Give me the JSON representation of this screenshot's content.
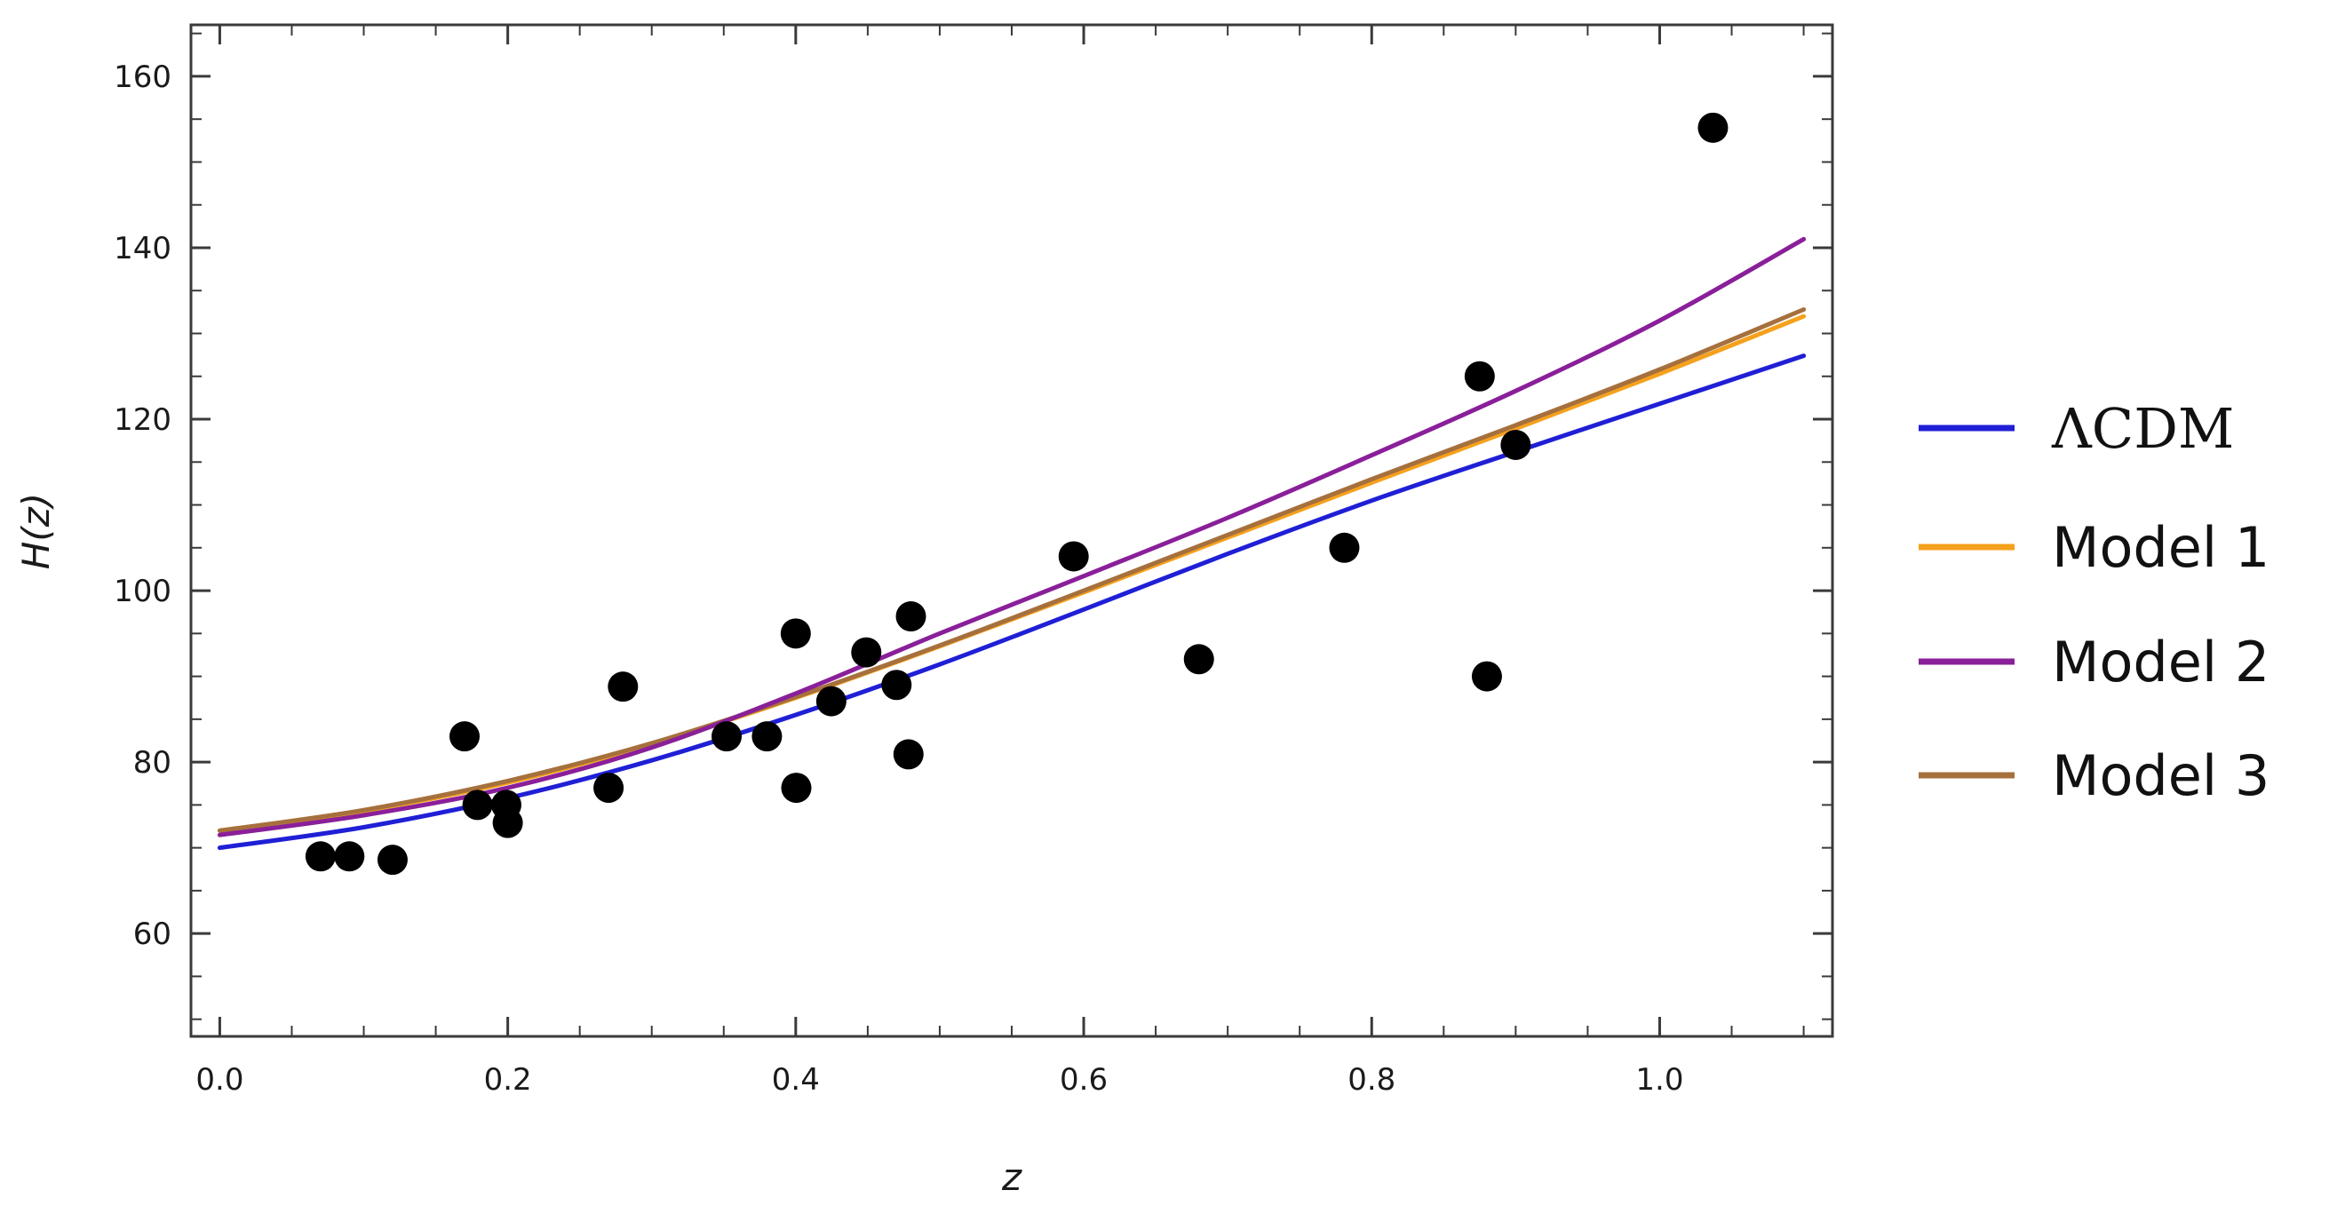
{
  "chart_data": {
    "type": "scatter",
    "xlabel": "z",
    "ylabel": "H(z)",
    "xlim": [
      -0.02,
      1.12
    ],
    "ylim": [
      48,
      166
    ],
    "xticks": [
      0.0,
      0.2,
      0.4,
      0.6,
      0.8,
      1.0
    ],
    "xtick_labels": [
      "0.0",
      "0.2",
      "0.4",
      "0.6",
      "0.8",
      "1.0"
    ],
    "yticks": [
      60,
      80,
      100,
      120,
      140,
      160
    ],
    "ytick_labels": [
      "60",
      "80",
      "100",
      "120",
      "140",
      "160"
    ],
    "grid": false,
    "legend_position": "right",
    "points": [
      {
        "x": 0.07,
        "y": 69
      },
      {
        "x": 0.09,
        "y": 69
      },
      {
        "x": 0.12,
        "y": 68.6
      },
      {
        "x": 0.17,
        "y": 83
      },
      {
        "x": 0.179,
        "y": 75
      },
      {
        "x": 0.199,
        "y": 75
      },
      {
        "x": 0.2,
        "y": 72.9
      },
      {
        "x": 0.27,
        "y": 77
      },
      {
        "x": 0.28,
        "y": 88.8
      },
      {
        "x": 0.352,
        "y": 83
      },
      {
        "x": 0.38,
        "y": 83
      },
      {
        "x": 0.4,
        "y": 95
      },
      {
        "x": 0.4004,
        "y": 77
      },
      {
        "x": 0.4247,
        "y": 87.1
      },
      {
        "x": 0.449,
        "y": 92.8
      },
      {
        "x": 0.47,
        "y": 89
      },
      {
        "x": 0.4783,
        "y": 80.9
      },
      {
        "x": 0.48,
        "y": 97
      },
      {
        "x": 0.593,
        "y": 104
      },
      {
        "x": 0.68,
        "y": 92
      },
      {
        "x": 0.781,
        "y": 105
      },
      {
        "x": 0.875,
        "y": 125
      },
      {
        "x": 0.88,
        "y": 90
      },
      {
        "x": 0.9,
        "y": 117
      },
      {
        "x": 1.037,
        "y": 154
      }
    ],
    "series": [
      {
        "name": "ΛCDM",
        "color": "#1f1fd6",
        "x": [
          0,
          0.1,
          0.2,
          0.3,
          0.4,
          0.5,
          0.6,
          0.7,
          0.8,
          0.9,
          1.0,
          1.1
        ],
        "y": [
          70,
          72.4,
          75.8,
          80.2,
          85.5,
          91.4,
          97.8,
          104.3,
          110.5,
          116.2,
          121.8,
          127.4
        ]
      },
      {
        "name": "Model 1",
        "color": "#f5a11d",
        "x": [
          0,
          0.1,
          0.2,
          0.3,
          0.4,
          0.5,
          0.6,
          0.7,
          0.8,
          0.9,
          1.0,
          1.1
        ],
        "y": [
          72,
          74.3,
          77.6,
          82.1,
          87.5,
          93.5,
          99.8,
          106.2,
          112.6,
          118.9,
          125.3,
          132
        ]
      },
      {
        "name": "Model 2",
        "color": "#8a1f9a",
        "x": [
          0,
          0.1,
          0.2,
          0.3,
          0.4,
          0.5,
          0.6,
          0.7,
          0.8,
          0.9,
          1.0,
          1.1
        ],
        "y": [
          71.5,
          73.8,
          77,
          81.7,
          88,
          95,
          101.7,
          108.5,
          115.8,
          123.3,
          131.5,
          141
        ]
      },
      {
        "name": "Model 3",
        "color": "#a6703d",
        "x": [
          0,
          0.1,
          0.2,
          0.3,
          0.4,
          0.5,
          0.6,
          0.7,
          0.8,
          0.9,
          1.0,
          1.1
        ],
        "y": [
          72,
          74.4,
          77.8,
          82.2,
          87.6,
          93.6,
          100,
          106.5,
          113,
          119.3,
          125.8,
          132.8
        ]
      }
    ]
  }
}
